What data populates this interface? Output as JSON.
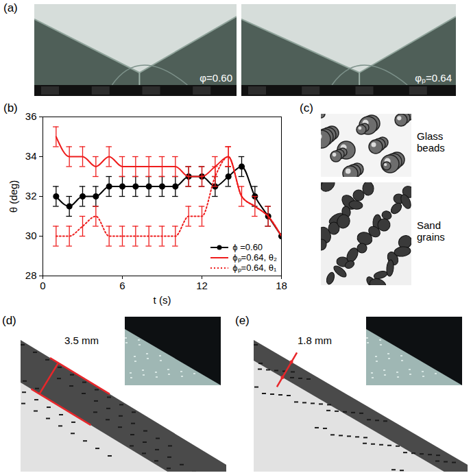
{
  "chart_data": {
    "type": "line",
    "xlabel": "t (s)",
    "ylabel": "θ (deg)",
    "xlim": [
      0,
      18
    ],
    "xticks": [
      0,
      6,
      12,
      18
    ],
    "ylim": [
      28,
      36
    ],
    "yticks": [
      28,
      30,
      32,
      34,
      36
    ],
    "legend": "bottom-right",
    "x": [
      1,
      2,
      3,
      4,
      5,
      6,
      7,
      8,
      9,
      10,
      11,
      12,
      13,
      14,
      15,
      16,
      17,
      18
    ],
    "series": [
      {
        "name": "ϕ =0.60",
        "color": "#000000",
        "marker": "circle",
        "line_style": "solid",
        "values": [
          32,
          31.5,
          32,
          32,
          32.5,
          32.5,
          32.5,
          32.5,
          32.5,
          32.5,
          33,
          33,
          32.5,
          33,
          33.5,
          32,
          31,
          30
        ],
        "errors": [
          0.5,
          0.5,
          0.5,
          0.5,
          0.5,
          0.5,
          0.5,
          0.5,
          0.5,
          0.5,
          0.5,
          0.5,
          0.5,
          0.5,
          0.5,
          0.5,
          0.5,
          null
        ]
      },
      {
        "name": "ϕₚ=0.64, θ₂",
        "color": "#ee1c1c",
        "line_style": "solid",
        "values": [
          35,
          34,
          34,
          33.5,
          34,
          33.5,
          33.5,
          33.5,
          33.5,
          33.5,
          33,
          33,
          33.5,
          34,
          32,
          31.5,
          31,
          30
        ],
        "errors": [
          0.5,
          0.5,
          0.5,
          0.5,
          0.5,
          0.5,
          0.5,
          0.5,
          0.5,
          0.5,
          0.5,
          0.5,
          0.5,
          0.5,
          0.5,
          0.5,
          0.5,
          null
        ]
      },
      {
        "name": "ϕₚ=0.64, θ₁",
        "color": "#ee1c1c",
        "line_style": "dotted",
        "values": [
          30,
          30,
          30.5,
          31,
          30,
          30,
          30,
          30,
          30,
          30,
          31,
          31,
          33,
          34,
          32,
          31.5,
          31,
          30
        ],
        "errors": [
          0.5,
          0.5,
          0.5,
          0.5,
          0.5,
          0.5,
          0.5,
          0.5,
          0.5,
          0.5,
          0.5,
          0.5,
          0.5,
          0.5,
          null,
          null,
          null,
          null
        ]
      }
    ]
  },
  "panels": {
    "a": {
      "label": "(a)",
      "images": [
        "φ=0.60",
        "φₚ=0.64"
      ]
    },
    "b": {
      "label": "(b)"
    },
    "c": {
      "label": "(c)",
      "images": [
        "Glass beads",
        "Sand grains"
      ]
    },
    "d": {
      "label": "(d)",
      "annotation": "3.5 mm"
    },
    "e": {
      "label": "(e)",
      "annotation": "1.8 mm"
    }
  }
}
